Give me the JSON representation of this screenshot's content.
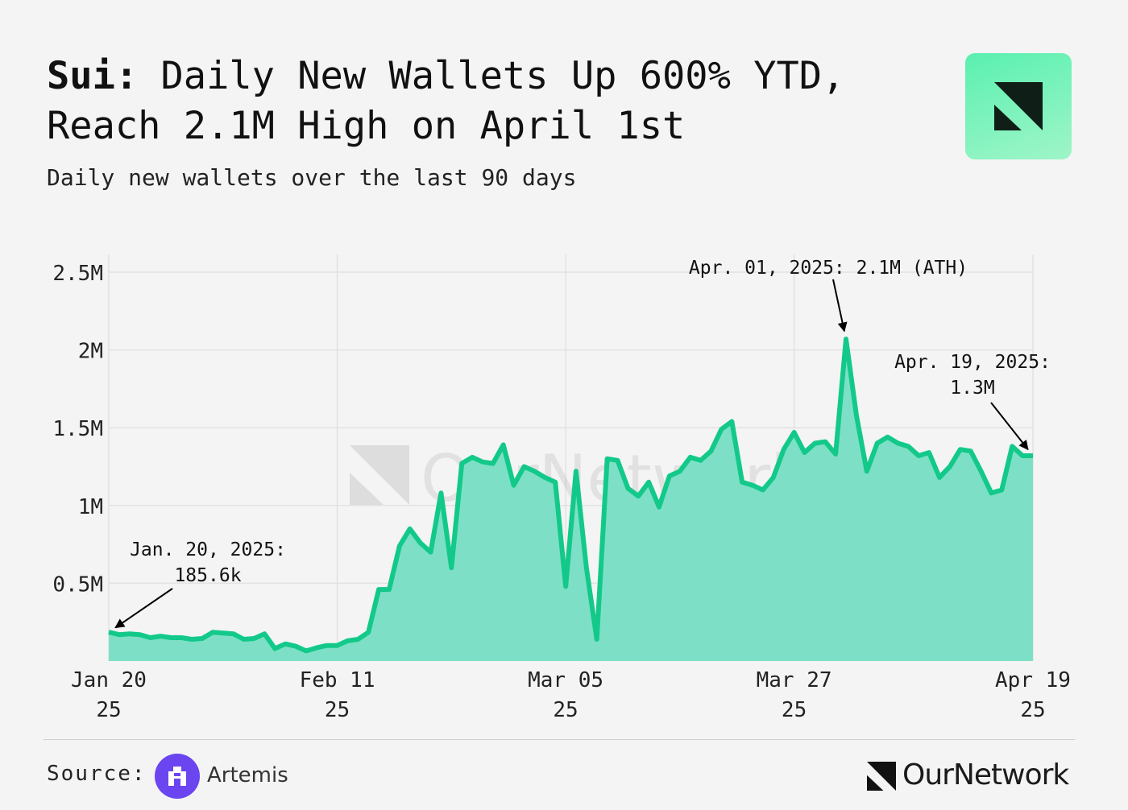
{
  "header": {
    "title_bold": "Sui:",
    "title_rest": " Daily New Wallets Up 600% YTD, Reach 2.1M High on April 1st",
    "subtitle": "Daily new wallets over the last 90 days"
  },
  "footer": {
    "source_label": "Source:",
    "source_name": "Artemis",
    "brand": "OurNetwork"
  },
  "watermark": "OurNetwork",
  "colors": {
    "line": "#13c98a",
    "fill": "#7de0c6",
    "background": "#f4f4f4",
    "logo_tile": "#6ff0b8"
  },
  "icons": {
    "logo": "ournetwork-mark-icon",
    "source": "artemis-logo-icon"
  },
  "chart_data": {
    "type": "area",
    "x_start": "2025-01-20",
    "x_end": "2025-04-19",
    "ylim": [
      0,
      2500000
    ],
    "y_ticks": [
      {
        "value": 500000,
        "label": "0.5M"
      },
      {
        "value": 1000000,
        "label": "1M"
      },
      {
        "value": 1500000,
        "label": "1.5M"
      },
      {
        "value": 2000000,
        "label": "2M"
      },
      {
        "value": 2500000,
        "label": "2.5M"
      }
    ],
    "x_ticks": [
      {
        "date": "2025-01-20",
        "line1": "Jan 20",
        "line2": "25"
      },
      {
        "date": "2025-02-11",
        "line1": "Feb 11",
        "line2": "25"
      },
      {
        "date": "2025-03-05",
        "line1": "Mar 05",
        "line2": "25"
      },
      {
        "date": "2025-03-27",
        "line1": "Mar 27",
        "line2": "25"
      },
      {
        "date": "2025-04-19",
        "line1": "Apr 19",
        "line2": "25"
      }
    ],
    "grid": true,
    "values": [
      185600,
      170000,
      175000,
      170000,
      150000,
      160000,
      150000,
      150000,
      140000,
      145000,
      185000,
      180000,
      175000,
      140000,
      145000,
      175000,
      80000,
      110000,
      95000,
      65000,
      85000,
      100000,
      100000,
      130000,
      140000,
      185000,
      460000,
      460000,
      740000,
      850000,
      760000,
      700000,
      1080000,
      600000,
      1270000,
      1310000,
      1280000,
      1270000,
      1390000,
      1130000,
      1250000,
      1220000,
      1180000,
      1150000,
      480000,
      1220000,
      600000,
      140000,
      1300000,
      1290000,
      1110000,
      1060000,
      1150000,
      990000,
      1190000,
      1220000,
      1310000,
      1290000,
      1350000,
      1490000,
      1540000,
      1150000,
      1130000,
      1100000,
      1180000,
      1360000,
      1470000,
      1340000,
      1400000,
      1410000,
      1330000,
      2070000,
      1580000,
      1220000,
      1400000,
      1440000,
      1400000,
      1380000,
      1320000,
      1340000,
      1180000,
      1250000,
      1360000,
      1350000,
      1220000,
      1080000,
      1100000,
      1380000,
      1320000,
      1320000
    ],
    "annotations": [
      {
        "date": "2025-01-20",
        "value": 185600,
        "line1": "Jan. 20, 2025:",
        "line2": "185.6k"
      },
      {
        "date": "2025-04-01",
        "value": 2070000,
        "line1": "Apr. 01, 2025: 2.1M (ATH)",
        "line2": ""
      },
      {
        "date": "2025-04-19",
        "value": 1320000,
        "line1": "Apr. 19, 2025:",
        "line2": "1.3M"
      }
    ]
  }
}
